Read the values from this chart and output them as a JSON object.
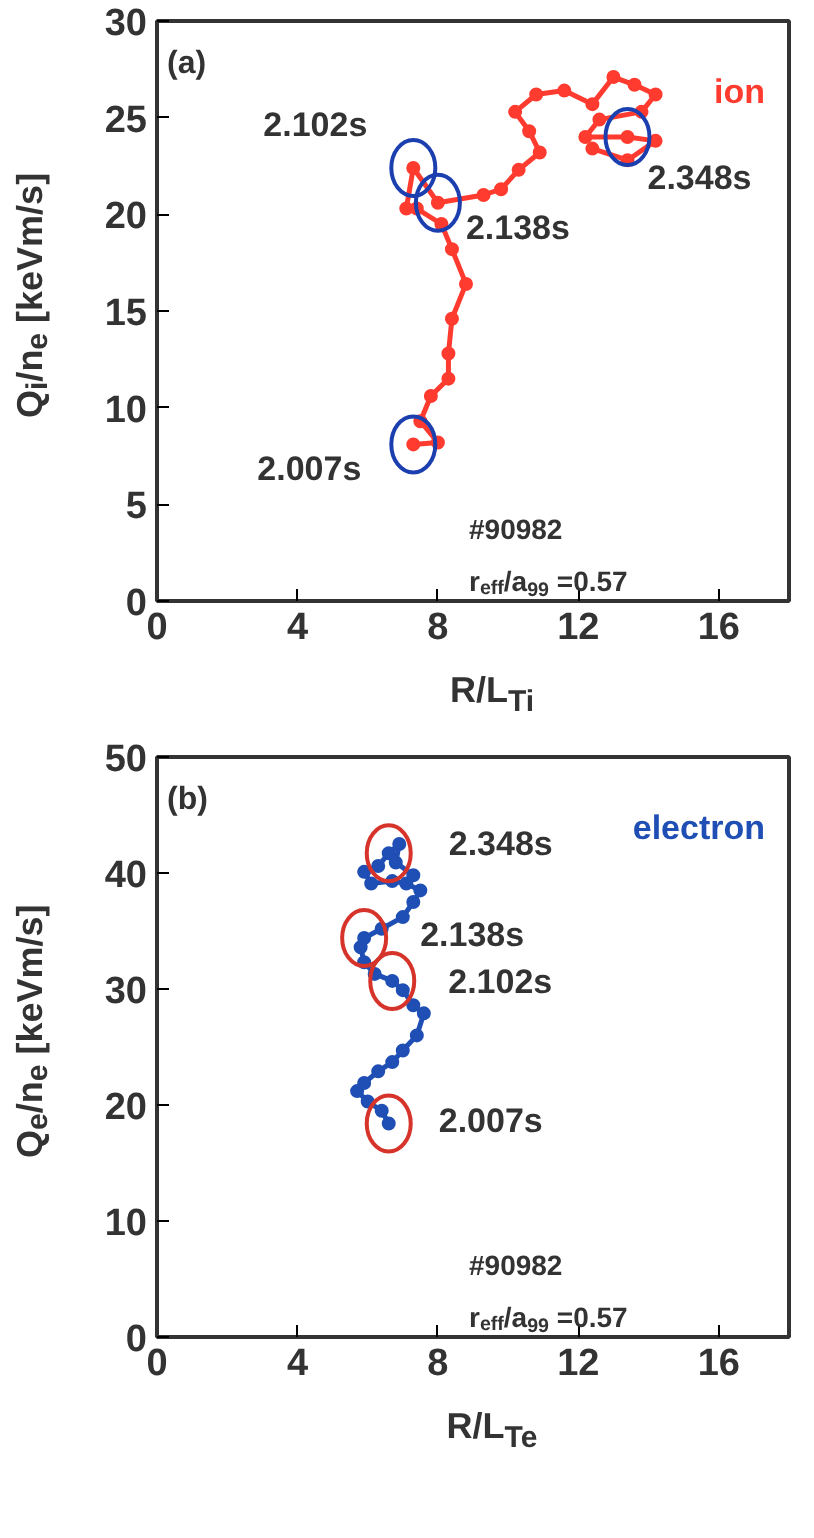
{
  "chart_data": [
    {
      "type": "line",
      "marker": "circle",
      "xlabel": "R/L$_{Ti}$",
      "ylabel": "Q$_{i}$/n$_{e}$ [keVm/s]",
      "xlim": [
        0,
        18
      ],
      "ylim": [
        0,
        30
      ],
      "xticks": [
        0,
        4,
        8,
        12,
        16
      ],
      "yticks": [
        0,
        5,
        10,
        15,
        20,
        25,
        30
      ],
      "series": [
        {
          "name": "ion",
          "color": "#ff3b2f",
          "x": [
            7.3,
            8.0,
            7.5,
            7.8,
            8.3,
            8.3,
            8.4,
            8.8,
            8.4,
            8.1,
            7.4,
            7.1,
            7.3,
            8.0,
            9.3,
            9.8,
            10.3,
            10.9,
            10.6,
            10.2,
            10.8,
            11.6,
            12.4,
            13.0,
            13.6,
            14.2,
            13.8,
            12.6,
            12.2,
            13.4,
            14.2,
            13.4,
            12.4
          ],
          "values": [
            8.1,
            8.2,
            9.3,
            10.6,
            11.5,
            12.8,
            14.6,
            16.4,
            18.2,
            19.5,
            20.3,
            20.3,
            22.4,
            20.6,
            21.0,
            21.3,
            22.3,
            23.2,
            24.3,
            25.3,
            26.2,
            26.4,
            25.7,
            27.1,
            26.7,
            26.2,
            25.3,
            24.9,
            24.0,
            24.0,
            23.8,
            22.8,
            23.4
          ]
        }
      ],
      "annotations": [
        "(a)",
        {
          "text": "2.007s",
          "x": 7.3,
          "y": 8.1
        },
        {
          "text": "2.102s",
          "x": 7.3,
          "y": 22.4
        },
        {
          "text": "2.138s",
          "x": 8.0,
          "y": 20.6
        },
        {
          "text": "2.348s",
          "x": 13.4,
          "y": 24.0
        },
        "#90982",
        "r$_{eff}$/a$_{99}$ =0.57"
      ]
    },
    {
      "type": "line",
      "marker": "circle",
      "xlabel": "R/L$_{Te}$",
      "ylabel": "Q$_{e}$/n$_{e}$ [keVm/s]",
      "xlim": [
        0,
        18
      ],
      "ylim": [
        0,
        50
      ],
      "xticks": [
        0,
        4,
        8,
        12,
        16
      ],
      "yticks": [
        0,
        10,
        20,
        30,
        40,
        50
      ],
      "series": [
        {
          "name": "electron",
          "color": "#1f4fb4",
          "x": [
            6.6,
            6.4,
            6.0,
            5.7,
            5.9,
            6.3,
            6.7,
            7.0,
            7.4,
            7.6,
            7.3,
            7.0,
            6.7,
            6.2,
            5.9,
            5.8,
            5.9,
            6.4,
            7.0,
            7.3,
            7.5,
            7.1,
            6.7,
            6.1,
            5.9,
            6.3,
            6.6,
            6.9,
            6.8,
            7.3
          ],
          "values": [
            18.4,
            19.5,
            20.3,
            21.2,
            21.9,
            22.9,
            23.7,
            24.7,
            26.0,
            27.9,
            28.6,
            29.9,
            30.7,
            31.3,
            32.3,
            33.6,
            34.4,
            35.2,
            36.2,
            37.5,
            38.5,
            39.1,
            39.3,
            39.1,
            40.1,
            40.6,
            41.7,
            42.5,
            40.9,
            39.8
          ]
        }
      ],
      "annotations": [
        "(b)",
        {
          "text": "2.348s",
          "x": 6.6,
          "y": 41.7
        },
        {
          "text": "2.138s",
          "x": 5.9,
          "y": 34.4
        },
        {
          "text": "2.102s",
          "x": 6.7,
          "y": 30.7
        },
        {
          "text": "2.007s",
          "x": 6.6,
          "y": 18.4
        },
        "#90982",
        "r$_{eff}$/a$_{99}$ =0.57"
      ]
    }
  ]
}
